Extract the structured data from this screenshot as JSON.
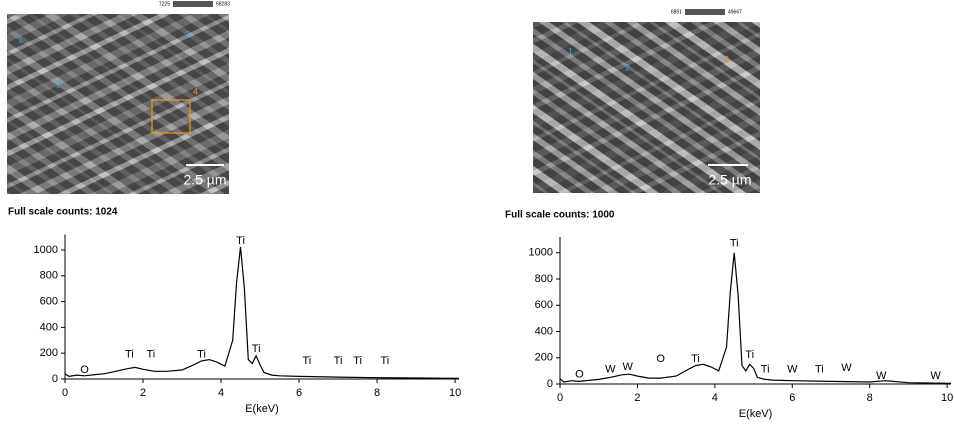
{
  "panels": [
    {
      "scale_bar": "2.5 µm",
      "markers": [
        "1",
        "2",
        "3",
        "4"
      ],
      "colorbar": [
        "7225",
        "68283"
      ]
    },
    {
      "scale_bar": "2.5 µm",
      "markers": [
        "1",
        "2",
        "3"
      ],
      "colorbar": [
        "6891",
        "49667"
      ]
    }
  ],
  "chart_data": [
    {
      "type": "line",
      "subtitle": "Full scale counts: 1024",
      "x_label": "E(keV)",
      "color": "#000000",
      "x": [
        0,
        0.1,
        0.3,
        0.5,
        0.8,
        1.0,
        1.3,
        1.6,
        1.8,
        2.0,
        2.3,
        2.6,
        3.0,
        3.3,
        3.5,
        3.7,
        3.9,
        4.1,
        4.3,
        4.4,
        4.5,
        4.6,
        4.7,
        4.8,
        4.9,
        5.0,
        5.1,
        5.3,
        5.5,
        6,
        7,
        8,
        9,
        10.1
      ],
      "values": [
        40,
        20,
        30,
        25,
        35,
        40,
        60,
        80,
        90,
        75,
        60,
        60,
        70,
        110,
        140,
        150,
        130,
        100,
        300,
        750,
        1024,
        700,
        150,
        120,
        180,
        110,
        50,
        30,
        25,
        20,
        15,
        10,
        8,
        5
      ],
      "xlim": [
        0,
        10.1
      ],
      "ylim": [
        0,
        1120
      ],
      "xticks": [
        0,
        2,
        4,
        6,
        8,
        10
      ],
      "yticks": [
        0,
        200,
        400,
        600,
        800,
        1000
      ],
      "annotations": [
        {
          "text": "O",
          "x": 0.5,
          "y": 70
        },
        {
          "text": "Ti",
          "x": 1.65,
          "y": 190
        },
        {
          "text": "Ti",
          "x": 2.2,
          "y": 190
        },
        {
          "text": "Ti",
          "x": 3.5,
          "y": 190
        },
        {
          "text": "Ti",
          "x": 4.5,
          "y": 1070
        },
        {
          "text": "Ti",
          "x": 4.9,
          "y": 230
        },
        {
          "text": "Ti",
          "x": 6.2,
          "y": 140
        },
        {
          "text": "Ti",
          "x": 7.0,
          "y": 140
        },
        {
          "text": "Ti",
          "x": 7.5,
          "y": 140
        },
        {
          "text": "Ti",
          "x": 8.2,
          "y": 140
        }
      ]
    },
    {
      "type": "line",
      "subtitle": "Full scale counts: 1000",
      "x_label": "E(keV)",
      "color": "#000000",
      "x": [
        0,
        0.1,
        0.3,
        0.5,
        0.8,
        1.0,
        1.3,
        1.6,
        1.8,
        2.0,
        2.3,
        2.6,
        3.0,
        3.3,
        3.5,
        3.7,
        3.9,
        4.1,
        4.3,
        4.4,
        4.5,
        4.6,
        4.7,
        4.8,
        4.9,
        5.0,
        5.1,
        5.3,
        5.5,
        6,
        7,
        8,
        8.4,
        9,
        10.1
      ],
      "values": [
        40,
        15,
        25,
        20,
        30,
        35,
        50,
        70,
        75,
        60,
        45,
        45,
        60,
        110,
        140,
        150,
        130,
        100,
        280,
        700,
        1000,
        680,
        140,
        100,
        150,
        120,
        50,
        35,
        30,
        25,
        20,
        15,
        25,
        10,
        5
      ],
      "xlim": [
        0,
        10.1
      ],
      "ylim": [
        0,
        1120
      ],
      "xticks": [
        0,
        2,
        4,
        6,
        8,
        10
      ],
      "yticks": [
        0,
        200,
        400,
        600,
        800,
        1000
      ],
      "annotations": [
        {
          "text": "O",
          "x": 0.5,
          "y": 70
        },
        {
          "text": "W",
          "x": 1.3,
          "y": 110
        },
        {
          "text": "W",
          "x": 1.75,
          "y": 130
        },
        {
          "text": "O",
          "x": 2.6,
          "y": 190
        },
        {
          "text": "Ti",
          "x": 3.5,
          "y": 190
        },
        {
          "text": "Ti",
          "x": 4.5,
          "y": 1070
        },
        {
          "text": "Ti",
          "x": 4.9,
          "y": 220
        },
        {
          "text": "Ti",
          "x": 5.3,
          "y": 110
        },
        {
          "text": "W",
          "x": 6.0,
          "y": 110
        },
        {
          "text": "Ti",
          "x": 6.7,
          "y": 110
        },
        {
          "text": "W",
          "x": 7.4,
          "y": 120
        },
        {
          "text": "W",
          "x": 8.3,
          "y": 60
        },
        {
          "text": "W",
          "x": 9.7,
          "y": 60
        }
      ]
    }
  ]
}
